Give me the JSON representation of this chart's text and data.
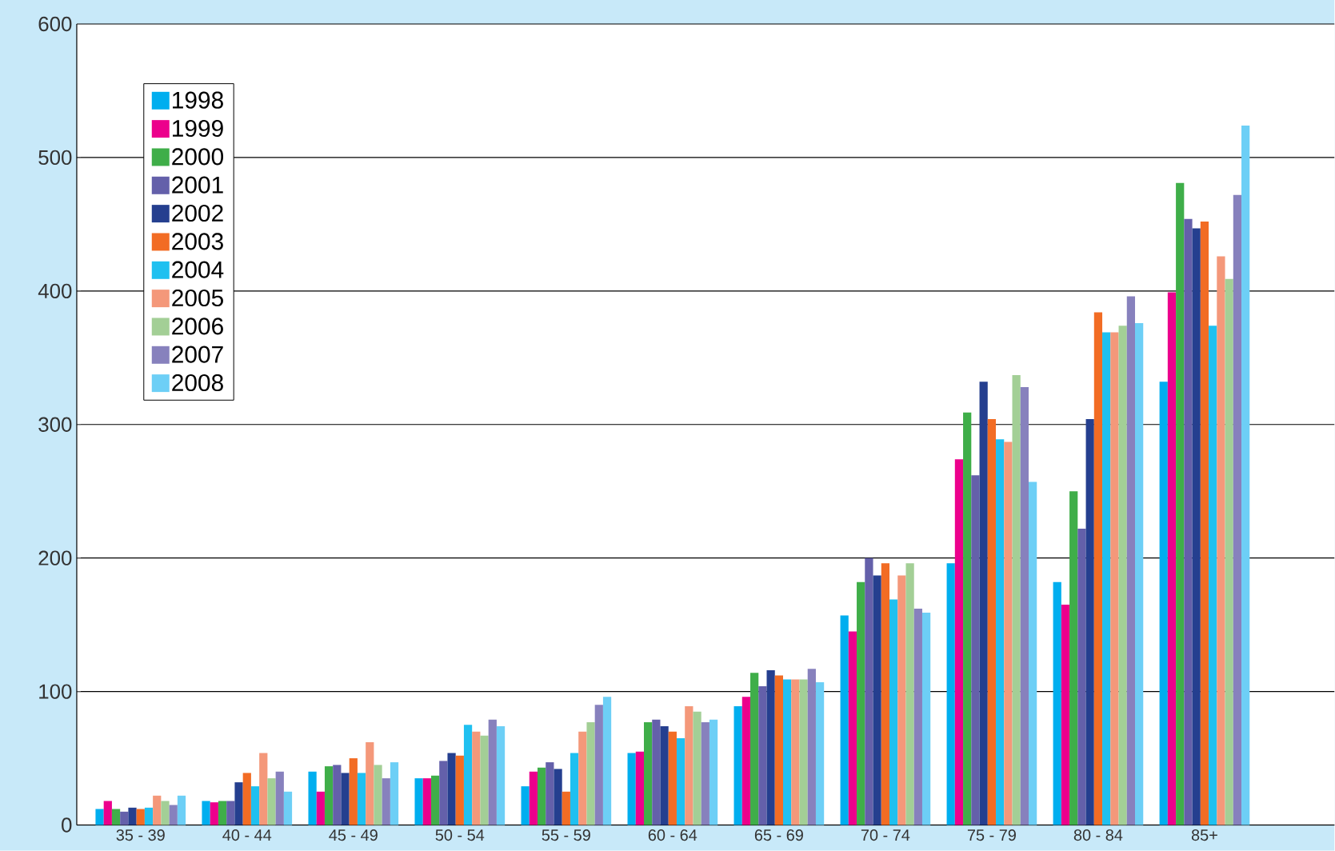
{
  "chart_data": {
    "type": "bar",
    "categories": [
      "35 - 39",
      "40 - 44",
      "45 - 49",
      "50 - 54",
      "55 - 59",
      "60 - 64",
      "65 - 69",
      "70 - 74",
      "75 - 79",
      "80 - 84",
      "85+"
    ],
    "series": [
      {
        "name": "1998",
        "color": "#00aeef",
        "values": [
          12,
          18,
          40,
          35,
          29,
          54,
          89,
          157,
          196,
          182,
          332
        ]
      },
      {
        "name": "1999",
        "color": "#ec008c",
        "values": [
          18,
          17,
          25,
          35,
          40,
          55,
          96,
          145,
          274,
          165,
          399
        ]
      },
      {
        "name": "2000",
        "color": "#3fae49",
        "values": [
          12,
          18,
          44,
          37,
          43,
          77,
          114,
          182,
          309,
          250,
          481
        ]
      },
      {
        "name": "2001",
        "color": "#6460aa",
        "values": [
          10,
          18,
          45,
          48,
          47,
          79,
          104,
          200,
          262,
          222,
          454
        ]
      },
      {
        "name": "2002",
        "color": "#253f8f",
        "values": [
          13,
          32,
          39,
          54,
          42,
          74,
          116,
          187,
          332,
          304,
          447
        ]
      },
      {
        "name": "2003",
        "color": "#f26c24",
        "values": [
          12,
          39,
          50,
          52,
          25,
          70,
          112,
          196,
          304,
          384,
          452
        ]
      },
      {
        "name": "2004",
        "color": "#1fc0f0",
        "values": [
          13,
          29,
          39,
          75,
          54,
          65,
          109,
          169,
          289,
          369,
          374
        ]
      },
      {
        "name": "2005",
        "color": "#f4987a",
        "values": [
          22,
          54,
          62,
          70,
          70,
          89,
          109,
          187,
          287,
          369,
          426
        ]
      },
      {
        "name": "2006",
        "color": "#a3cf96",
        "values": [
          18,
          35,
          45,
          67,
          77,
          85,
          109,
          196,
          337,
          374,
          409
        ]
      },
      {
        "name": "2007",
        "color": "#8781bd",
        "values": [
          15,
          40,
          35,
          79,
          90,
          77,
          117,
          162,
          328,
          396,
          472
        ]
      },
      {
        "name": "2008",
        "color": "#6dcff6",
        "values": [
          22,
          25,
          47,
          74,
          96,
          79,
          107,
          159,
          257,
          376,
          524
        ]
      }
    ],
    "ylim": [
      0,
      600
    ],
    "yticks": [
      0,
      100,
      200,
      300,
      400,
      500,
      600
    ],
    "grid": "y",
    "legend": "top left"
  }
}
